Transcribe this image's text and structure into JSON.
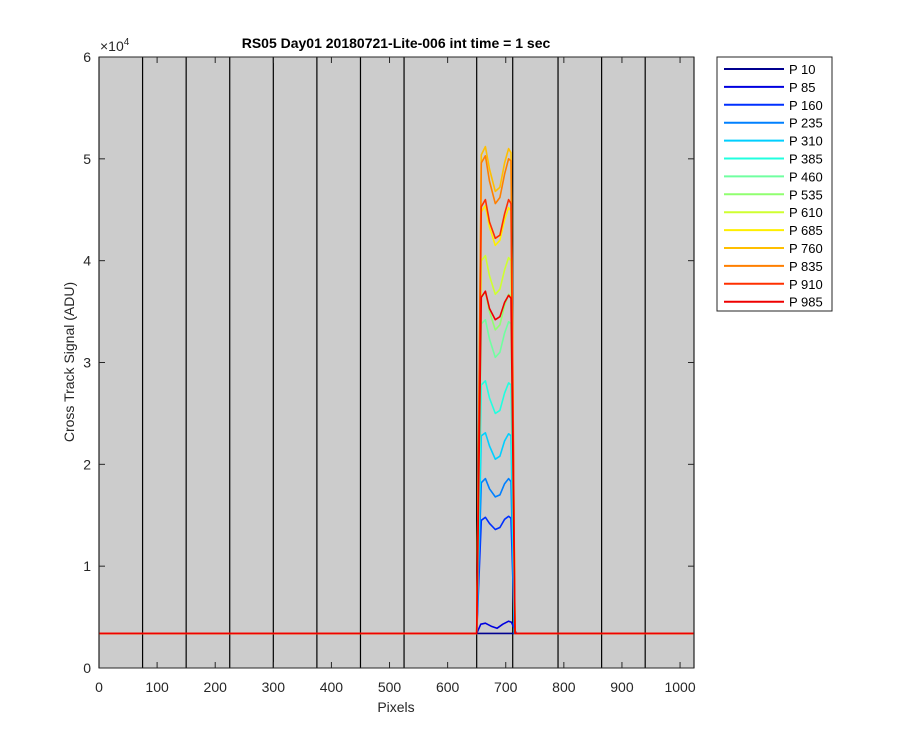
{
  "chart_data": {
    "type": "line",
    "title": "RS05 Day01 20180721-Lite-006 int time = 1 sec",
    "xlabel": "Pixels",
    "ylabel": "Cross Track Signal (ADU)",
    "y_exponent_label": "×10",
    "y_exponent_power": "4",
    "xlim": [
      0,
      1024
    ],
    "ylim": [
      0,
      60000
    ],
    "xticks": [
      0,
      100,
      200,
      300,
      400,
      500,
      600,
      700,
      800,
      900,
      1000
    ],
    "yticks": [
      0,
      10000,
      20000,
      30000,
      40000,
      50000,
      60000
    ],
    "ytick_labels": [
      "0",
      "1",
      "2",
      "3",
      "4",
      "5",
      "6"
    ],
    "background": "#cccccc",
    "vertical_lines_x": [
      0,
      75,
      150,
      225,
      300,
      375,
      450,
      525,
      650,
      712,
      790,
      865,
      940,
      1024
    ],
    "legend_position": "outside-right-top",
    "baseline": 3400,
    "series": [
      {
        "name": "P 10",
        "color": "#00008f",
        "x": [
          0,
          700,
          1024
        ],
        "y": [
          3400,
          3400,
          3400
        ]
      },
      {
        "name": "P 85",
        "color": "#0000df",
        "x": [
          0,
          650,
          657,
          665,
          675,
          685,
          695,
          705,
          710,
          718,
          1024
        ],
        "y": [
          3400,
          3400,
          4300,
          4400,
          4100,
          3900,
          4300,
          4600,
          4500,
          3400,
          3400
        ]
      },
      {
        "name": "P 160",
        "color": "#0030ff",
        "x": [
          0,
          650,
          658,
          665,
          672,
          682,
          690,
          698,
          705,
          709,
          715,
          1024
        ],
        "y": [
          3400,
          3400,
          14500,
          14800,
          14200,
          13600,
          13800,
          14600,
          14900,
          14700,
          3400,
          3400
        ]
      },
      {
        "name": "P 235",
        "color": "#0080ff",
        "x": [
          0,
          650,
          658,
          665,
          672,
          682,
          690,
          698,
          705,
          709,
          715,
          1024
        ],
        "y": [
          3400,
          3400,
          18200,
          18600,
          17600,
          16800,
          17000,
          18100,
          18600,
          18300,
          3400,
          3400
        ]
      },
      {
        "name": "P 310",
        "color": "#00cfff",
        "x": [
          0,
          650,
          658,
          665,
          672,
          682,
          690,
          698,
          705,
          709,
          715,
          1024
        ],
        "y": [
          3400,
          3400,
          22800,
          23100,
          21800,
          20500,
          20800,
          22300,
          23000,
          22800,
          3400,
          3400
        ]
      },
      {
        "name": "P 385",
        "color": "#20ffdf",
        "x": [
          0,
          650,
          658,
          665,
          672,
          682,
          690,
          698,
          705,
          709,
          716,
          1024
        ],
        "y": [
          3400,
          3400,
          27800,
          28200,
          26500,
          25000,
          25300,
          27000,
          28000,
          27800,
          3400,
          3400
        ]
      },
      {
        "name": "P 460",
        "color": "#70ffa0",
        "x": [
          0,
          650,
          658,
          665,
          672,
          682,
          690,
          698,
          705,
          709,
          716,
          1024
        ],
        "y": [
          3400,
          3400,
          33800,
          34200,
          32300,
          30500,
          31000,
          32900,
          34000,
          33800,
          3400,
          3400
        ]
      },
      {
        "name": "P 535",
        "color": "#90ff70",
        "x": [
          0,
          650,
          658,
          665,
          672,
          682,
          690,
          698,
          705,
          709,
          716,
          1024
        ],
        "y": [
          3400,
          3400,
          36500,
          36900,
          35000,
          33200,
          33700,
          35600,
          36700,
          36500,
          3400,
          3400
        ]
      },
      {
        "name": "P 610",
        "color": "#cfff30",
        "x": [
          0,
          650,
          658,
          665,
          672,
          682,
          690,
          698,
          705,
          709,
          716,
          1024
        ],
        "y": [
          3400,
          3400,
          40000,
          40500,
          38500,
          36700,
          37200,
          39100,
          40300,
          40000,
          3400,
          3400
        ]
      },
      {
        "name": "P 685",
        "color": "#ffef00",
        "x": [
          0,
          650,
          658,
          665,
          672,
          682,
          690,
          698,
          705,
          709,
          716,
          1024
        ],
        "y": [
          3400,
          3400,
          44800,
          45400,
          43300,
          41500,
          42000,
          44000,
          45200,
          44900,
          3400,
          3400
        ]
      },
      {
        "name": "P 760",
        "color": "#ffbf00",
        "x": [
          0,
          650,
          658,
          665,
          672,
          682,
          690,
          698,
          705,
          709,
          716,
          1024
        ],
        "y": [
          3400,
          3400,
          50400,
          51200,
          49000,
          46800,
          47200,
          49600,
          51000,
          50600,
          3400,
          3400
        ]
      },
      {
        "name": "P 835",
        "color": "#ff7f00",
        "x": [
          0,
          650,
          658,
          665,
          672,
          682,
          690,
          698,
          705,
          709,
          716,
          1024
        ],
        "y": [
          3400,
          3400,
          49600,
          50300,
          47800,
          45600,
          46200,
          48500,
          50000,
          49800,
          3400,
          3400
        ]
      },
      {
        "name": "P 910",
        "color": "#ff3000",
        "x": [
          0,
          650,
          658,
          665,
          672,
          682,
          690,
          698,
          705,
          709,
          716,
          1024
        ],
        "y": [
          3400,
          3400,
          45300,
          46000,
          43800,
          42200,
          42500,
          44600,
          46000,
          45600,
          3400,
          3400
        ]
      },
      {
        "name": "P 985",
        "color": "#ef0000",
        "x": [
          0,
          650,
          658,
          665,
          672,
          682,
          690,
          698,
          705,
          709,
          716,
          1024
        ],
        "y": [
          3400,
          3400,
          36400,
          37000,
          35300,
          34200,
          34500,
          35900,
          36600,
          36300,
          3400,
          3400
        ]
      }
    ]
  }
}
